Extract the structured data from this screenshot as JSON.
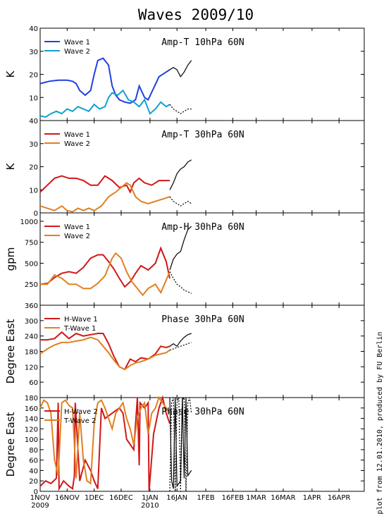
{
  "title": "Waves 2009/10",
  "credit": "plot from 12.01.2010, produced by FU Berlin",
  "x_axis": {
    "tick_labels": [
      "1NOV",
      "16NOV",
      "1DEC",
      "16DEC",
      "1JAN",
      "16JAN",
      "1FEB",
      "16FEB",
      "1MAR",
      "16MAR",
      "1APR",
      "16APR"
    ],
    "tick_days": [
      0,
      15,
      30,
      45,
      61,
      76,
      92,
      107,
      120,
      135,
      151,
      166
    ],
    "year_labels": [
      {
        "label": "2009",
        "day": 0
      },
      {
        "label": "2010",
        "day": 61
      }
    ],
    "xlim": [
      0,
      180
    ]
  },
  "chart_data": [
    {
      "type": "line",
      "title": "Amp-T 10hPa 60N",
      "ylabel": "K",
      "ylim": [
        0,
        40
      ],
      "yticks": [
        10,
        20,
        30,
        40
      ],
      "ytick_labels": [
        "10",
        "20",
        "30",
        "40"
      ],
      "bottom_label": "40",
      "legend": [
        "Wave 1",
        "Wave 2"
      ],
      "series": [
        {
          "name": "Wave 1",
          "color": "#2040e0",
          "x": [
            0,
            5,
            10,
            15,
            18,
            20,
            22,
            25,
            28,
            30,
            32,
            35,
            38,
            40,
            42,
            44,
            47,
            50,
            53,
            55,
            58,
            60,
            63,
            66,
            70,
            72
          ],
          "y": [
            16,
            17,
            17.5,
            17.5,
            17,
            16,
            13,
            11,
            13,
            20,
            26,
            27,
            24,
            15,
            11,
            9,
            8,
            7.5,
            9,
            15,
            10,
            9,
            14,
            19,
            21,
            22
          ]
        },
        {
          "name": "Wave 2",
          "color": "#10a0d0",
          "x": [
            0,
            3,
            6,
            9,
            12,
            15,
            18,
            21,
            24,
            27,
            30,
            33,
            36,
            38,
            40,
            43,
            46,
            49,
            52,
            55,
            58,
            61,
            64,
            67,
            70,
            72
          ],
          "y": [
            2,
            1.5,
            3,
            4,
            3,
            5,
            4,
            6,
            5,
            4,
            7,
            5,
            6,
            10,
            12,
            11,
            13,
            9,
            8,
            6,
            9,
            3,
            5,
            8,
            6,
            7
          ]
        },
        {
          "name": "",
          "color": "#000000",
          "dash": false,
          "x": [
            72,
            74,
            76,
            78,
            80,
            82,
            84
          ],
          "y": [
            22,
            23,
            22,
            19,
            21,
            24,
            26
          ]
        },
        {
          "name": "",
          "color": "#000000",
          "dash": true,
          "x": [
            72,
            74,
            76,
            78,
            80,
            82,
            84
          ],
          "y": [
            7,
            5,
            4,
            3,
            4,
            5,
            5
          ]
        }
      ]
    },
    {
      "type": "line",
      "title": "Amp-T 30hPa 60N",
      "ylabel": "K",
      "ylim": [
        0,
        40
      ],
      "yticks": [
        0,
        10,
        20,
        30
      ],
      "ytick_labels": [
        "0",
        "10",
        "20",
        "30"
      ],
      "legend": [
        "Wave 1",
        "Wave 2"
      ],
      "series": [
        {
          "name": "Wave 1",
          "color": "#d01818",
          "x": [
            0,
            4,
            8,
            12,
            16,
            20,
            24,
            28,
            32,
            36,
            40,
            44,
            48,
            50,
            52,
            55,
            58,
            62,
            66,
            70,
            72
          ],
          "y": [
            9,
            12,
            15,
            16,
            15,
            15,
            14,
            12,
            12,
            16,
            14,
            11,
            12,
            9,
            13,
            15,
            13,
            12,
            14,
            14,
            14
          ]
        },
        {
          "name": "Wave 2",
          "color": "#e08020",
          "x": [
            0,
            4,
            8,
            12,
            15,
            18,
            21,
            24,
            27,
            30,
            34,
            38,
            42,
            45,
            48,
            50,
            53,
            56,
            60,
            64,
            68,
            72
          ],
          "y": [
            3,
            2,
            1,
            3,
            1,
            0.5,
            2,
            1,
            2,
            1,
            3,
            7,
            9,
            11,
            13,
            12,
            7,
            5,
            4,
            5,
            6,
            7
          ]
        },
        {
          "name": "",
          "color": "#000000",
          "dash": false,
          "x": [
            72,
            74,
            76,
            78,
            80,
            82,
            84
          ],
          "y": [
            10,
            13,
            17,
            19,
            20,
            22,
            23
          ]
        },
        {
          "name": "",
          "color": "#000000",
          "dash": true,
          "x": [
            72,
            74,
            76,
            78,
            80,
            82,
            84
          ],
          "y": [
            7,
            5,
            4,
            3,
            4,
            5,
            4
          ]
        }
      ]
    },
    {
      "type": "line",
      "title": "Amp-H 30hPa 60N",
      "ylabel": "gpm",
      "ylim": [
        0,
        1100
      ],
      "yticks": [
        250,
        500,
        750,
        1000
      ],
      "ytick_labels": [
        "250",
        "500",
        "750",
        "1000"
      ],
      "bottom_label": "360",
      "legend": [
        "Wave 1",
        "Wave 2"
      ],
      "series": [
        {
          "name": "Wave 1",
          "color": "#d01818",
          "x": [
            0,
            4,
            8,
            12,
            16,
            20,
            24,
            28,
            32,
            35,
            38,
            41,
            44,
            47,
            50,
            53,
            56,
            60,
            64,
            67,
            70,
            72
          ],
          "y": [
            250,
            260,
            330,
            380,
            400,
            380,
            450,
            560,
            600,
            600,
            520,
            430,
            320,
            220,
            280,
            380,
            470,
            420,
            500,
            680,
            520,
            320
          ]
        },
        {
          "name": "Wave 2",
          "color": "#e08020",
          "x": [
            0,
            4,
            8,
            12,
            16,
            20,
            24,
            28,
            32,
            36,
            40,
            42,
            45,
            48,
            51,
            54,
            57,
            60,
            64,
            67,
            70,
            72
          ],
          "y": [
            250,
            250,
            360,
            320,
            250,
            250,
            200,
            200,
            260,
            350,
            560,
            620,
            560,
            400,
            280,
            200,
            120,
            200,
            250,
            150,
            300,
            400
          ]
        },
        {
          "name": "",
          "color": "#000000",
          "dash": false,
          "x": [
            72,
            74,
            76,
            78,
            80,
            82,
            84
          ],
          "y": [
            420,
            550,
            610,
            640,
            780,
            900,
            940
          ]
        },
        {
          "name": "",
          "color": "#000000",
          "dash": true,
          "x": [
            72,
            74,
            76,
            78,
            80,
            82,
            84
          ],
          "y": [
            400,
            320,
            250,
            220,
            180,
            160,
            140
          ]
        }
      ]
    },
    {
      "type": "line",
      "title": "Phase 30hPa 60N",
      "ylabel": "Degree East",
      "ylim": [
        0,
        360
      ],
      "yticks": [
        60,
        120,
        180,
        240,
        300
      ],
      "ytick_labels": [
        "60",
        "120",
        "180",
        "240",
        "300"
      ],
      "legend": [
        "H-Wave 1",
        "T-Wave 1"
      ],
      "series": [
        {
          "name": "H-Wave 1",
          "color": "#d01818",
          "x": [
            0,
            4,
            8,
            12,
            16,
            20,
            24,
            28,
            32,
            35,
            38,
            41,
            44,
            47,
            50,
            53,
            56,
            60,
            64,
            67,
            70,
            72
          ],
          "y": [
            225,
            225,
            230,
            255,
            230,
            250,
            240,
            245,
            250,
            250,
            210,
            160,
            120,
            110,
            150,
            140,
            155,
            150,
            170,
            200,
            195,
            200
          ]
        },
        {
          "name": "T-Wave 1",
          "color": "#e08020",
          "x": [
            0,
            4,
            8,
            12,
            16,
            20,
            24,
            28,
            32,
            35,
            38,
            41,
            44,
            47,
            50,
            53,
            56,
            60,
            64,
            67,
            70,
            72
          ],
          "y": [
            170,
            190,
            205,
            215,
            215,
            220,
            225,
            235,
            225,
            200,
            175,
            145,
            120,
            110,
            125,
            135,
            140,
            150,
            165,
            170,
            175,
            185
          ]
        },
        {
          "name": "",
          "color": "#000000",
          "dash": false,
          "x": [
            72,
            74,
            76,
            78,
            80,
            82,
            84
          ],
          "y": [
            200,
            210,
            200,
            220,
            235,
            245,
            250
          ]
        },
        {
          "name": "",
          "color": "#000000",
          "dash": true,
          "x": [
            72,
            74,
            76,
            78,
            80,
            82,
            84
          ],
          "y": [
            185,
            190,
            195,
            200,
            205,
            210,
            215
          ]
        }
      ]
    },
    {
      "type": "line",
      "title": "Phase 30hPa 60N",
      "ylabel": "Degree East",
      "ylim": [
        0,
        180
      ],
      "yticks": [
        0,
        20,
        40,
        60,
        80,
        100,
        120,
        140,
        160,
        180
      ],
      "ytick_labels": [
        "0",
        "20",
        "40",
        "60",
        "80",
        "100",
        "120",
        "140",
        "160",
        "180"
      ],
      "legend": [
        "H-Wave 2",
        "T-Wave 2"
      ],
      "series": [
        {
          "name": "H-Wave 2",
          "color": "#d01818",
          "x": [
            0,
            3,
            6,
            9,
            10,
            10.5,
            13,
            16,
            18,
            19,
            19.5,
            22,
            25,
            28,
            30,
            32,
            34,
            36,
            40,
            44,
            46,
            48,
            50,
            52,
            54,
            55,
            55.5,
            58,
            60,
            60.5,
            63,
            66,
            68,
            70,
            72
          ],
          "y": [
            10,
            20,
            15,
            25,
            170,
            5,
            20,
            10,
            5,
            30,
            170,
            20,
            60,
            40,
            20,
            5,
            160,
            140,
            150,
            160,
            150,
            100,
            90,
            80,
            180,
            50,
            170,
            160,
            170,
            0,
            110,
            160,
            180,
            150,
            130
          ]
        },
        {
          "name": "T-Wave 2",
          "color": "#e08020",
          "x": [
            0,
            2,
            4,
            6,
            8,
            10,
            12,
            14,
            16,
            18,
            20,
            22,
            24,
            26,
            28,
            30,
            32,
            34,
            36,
            38,
            40,
            42,
            44,
            46,
            48,
            50,
            52,
            54,
            56,
            58,
            60,
            62,
            64,
            66,
            68,
            70,
            72
          ],
          "y": [
            160,
            175,
            170,
            150,
            60,
            30,
            170,
            175,
            165,
            160,
            25,
            150,
            60,
            20,
            15,
            130,
            170,
            175,
            160,
            140,
            120,
            150,
            160,
            170,
            140,
            120,
            90,
            140,
            160,
            170,
            110,
            150,
            160,
            180,
            170,
            160,
            150
          ]
        },
        {
          "name": "",
          "color": "#000000",
          "dash": false,
          "x": [
            72,
            73,
            74,
            75,
            76,
            77,
            78,
            79,
            80,
            81,
            82,
            83,
            84
          ],
          "y": [
            180,
            20,
            5,
            180,
            10,
            15,
            20,
            180,
            25,
            180,
            30,
            35,
            40
          ]
        },
        {
          "name": "",
          "color": "#000000",
          "dash": true,
          "x": [
            72,
            73,
            74,
            75,
            76,
            77,
            78,
            79,
            80,
            81,
            82,
            83,
            84
          ],
          "y": [
            0,
            170,
            180,
            0,
            170,
            180,
            0,
            175,
            180,
            0,
            170,
            180,
            150
          ]
        }
      ]
    }
  ]
}
